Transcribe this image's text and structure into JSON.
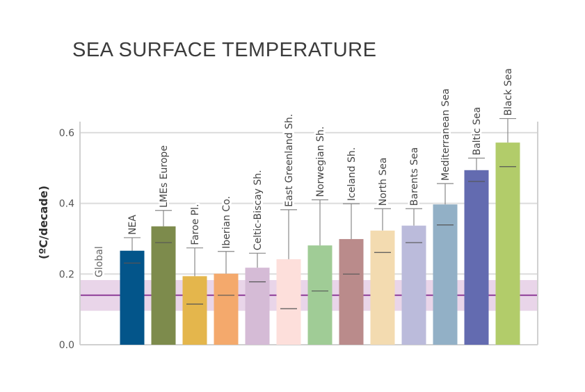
{
  "chart_data": {
    "type": "bar",
    "title": "SEA SURFACE TEMPERATURE",
    "ylabel": "(ºC/decade)",
    "xlabel": "",
    "ylim": [
      0,
      0.63
    ],
    "yticks": [
      "0.0",
      "0.2",
      "0.4",
      "0.6"
    ],
    "grid": true,
    "reference": {
      "name": "Global",
      "value": 0.14,
      "band": [
        0.096,
        0.183
      ],
      "color": "#8e3c97",
      "band_color": "#e9d5e9"
    },
    "categories": [
      "NEA",
      "LMEs Europe",
      "Faroe Pl.",
      "Iberian Co.",
      "Celtic-Biscay Sh.",
      "East Greenland Sh.",
      "Norwegian Sh.",
      "Iceland Sh.",
      "North Sea",
      "Barents Sea",
      "Mediterranean Sea",
      "Baltic Sea",
      "Black Sea"
    ],
    "values": [
      0.266,
      0.335,
      0.194,
      0.201,
      0.218,
      0.242,
      0.281,
      0.299,
      0.323,
      0.337,
      0.397,
      0.494,
      0.572
    ],
    "inner_marks": [
      0.231,
      0.289,
      0.115,
      0.14,
      0.178,
      0.102,
      0.152,
      0.2,
      0.261,
      0.289,
      0.339,
      0.462,
      0.504
    ],
    "whisker_tops": [
      0.303,
      0.38,
      0.274,
      0.264,
      0.259,
      0.382,
      0.41,
      0.399,
      0.385,
      0.385,
      0.456,
      0.528,
      0.64
    ],
    "colors": [
      "#03558a",
      "#7d8b4c",
      "#e4b64c",
      "#f4a96c",
      "#d5bbd6",
      "#fddfdb",
      "#a0cc96",
      "#ba8b8b",
      "#f3dbb0",
      "#bbbbdb",
      "#92b0c6",
      "#636bb0",
      "#b2cc6a"
    ]
  }
}
